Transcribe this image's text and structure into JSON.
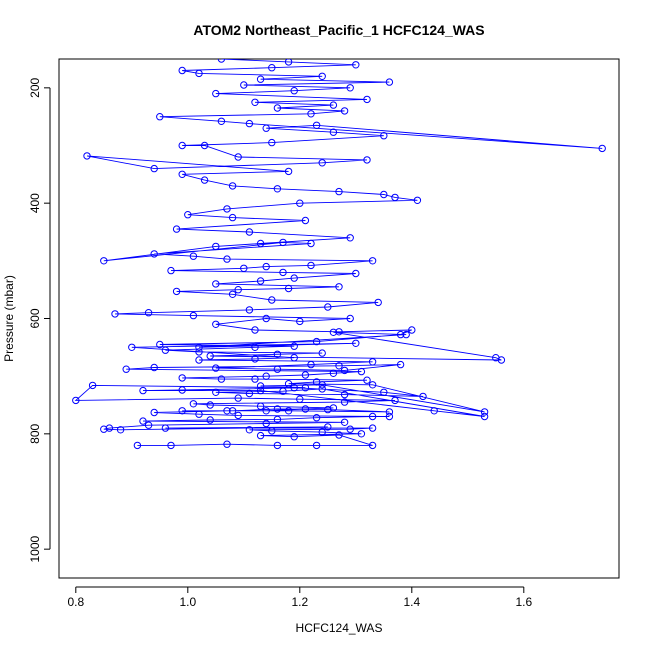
{
  "chart_data": {
    "type": "line",
    "title": "ATOM2 Northeast_Pacific_1 HCFC124_WAS",
    "xlabel": "HCFC124_WAS",
    "ylabel": "Pressure (mbar)",
    "xlim": [
      0.77,
      1.77
    ],
    "ylim": [
      1050,
      150
    ],
    "y_reversed": true,
    "x_ticks": [
      0.8,
      1.0,
      1.2,
      1.4,
      1.6
    ],
    "x_tick_labels": [
      "0.8",
      "1.0",
      "1.2",
      "1.4",
      "1.6"
    ],
    "y_ticks": [
      200,
      400,
      600,
      800,
      1000
    ],
    "y_tick_labels": [
      "200",
      "400",
      "600",
      "800",
      "1000"
    ],
    "color": "#0000ff",
    "marker": "open-circle",
    "grid": false,
    "legend": "none",
    "series": [
      {
        "x": [
          0.91,
          0.97,
          1.07,
          1.16,
          1.23,
          1.33,
          1.27,
          1.19,
          1.13,
          1.31,
          1.24,
          1.15,
          1.11,
          1.29,
          1.33,
          0.96,
          1.25,
          0.88,
          0.85,
          0.86,
          0.93,
          1.14,
          1.28,
          0.92,
          1.04,
          1.16,
          1.23,
          1.33,
          1.36,
          1.09,
          1.02,
          0.94,
          1.07,
          1.18,
          1.36,
          1.25,
          1.16,
          1.08,
          0.99,
          1.14,
          1.21,
          1.26,
          1.13,
          1.04,
          1.01,
          1.28,
          1.37,
          1.2,
          1.09,
          0.8,
          0.83,
          1.19,
          1.35,
          1.42,
          1.28,
          1.11,
          1.05,
          1.17,
          1.24,
          1.53,
          1.44,
          1.13,
          0.92,
          0.99,
          1.21,
          1.13,
          1.24,
          1.53,
          1.33,
          1.18,
          1.23,
          1.32,
          1.12,
          1.06,
          0.99,
          1.14,
          1.21,
          1.26,
          1.31,
          0.89,
          0.94,
          1.27,
          1.38,
          1.28,
          1.16,
          1.05,
          1.22,
          1.33,
          1.02,
          1.12,
          1.19,
          0.9,
          1.3,
          1.02,
          1.39,
          1.26,
          1.55,
          1.56,
          1.04,
          1.16,
          1.24,
          1.02,
          0.96,
          1.12,
          1.19,
          0.95,
          1.23,
          1.38,
          1.4,
          1.27,
          1.12,
          1.05,
          1.14,
          1.2,
          1.29,
          1.01,
          0.87,
          0.93,
          1.11,
          1.25,
          1.34,
          1.15,
          1.08,
          0.98,
          1.09,
          1.18,
          1.27,
          1.05,
          1.13,
          1.19,
          1.3,
          1.17,
          0.97,
          1.1,
          1.14,
          1.22,
          1.33,
          1.07,
          1.01,
          0.94,
          1.22,
          1.17,
          0.85,
          1.05,
          1.13,
          1.29,
          1.11,
          0.98,
          1.21,
          1.08,
          1.0,
          1.07,
          1.2,
          1.41,
          1.37,
          1.35,
          1.27,
          1.16,
          1.08,
          1.03,
          0.99,
          1.18,
          0.82,
          0.94,
          1.24,
          1.32,
          1.09,
          1.03,
          0.99,
          1.15,
          1.35,
          1.26,
          1.14,
          1.23,
          1.74,
          1.11,
          1.06,
          0.95,
          1.22,
          1.28,
          1.16,
          1.26,
          1.12,
          1.32,
          1.05,
          1.19,
          1.29,
          1.1,
          1.36,
          1.13,
          1.24,
          1.02,
          0.99,
          1.15,
          1.3,
          1.18,
          1.06
        ],
        "y": [
          820,
          820,
          818,
          820,
          820,
          820,
          802,
          805,
          803,
          800,
          797,
          795,
          793,
          792,
          790,
          790,
          788,
          793,
          792,
          790,
          785,
          782,
          780,
          778,
          776,
          775,
          772,
          770,
          770,
          768,
          766,
          763,
          760,
          760,
          762,
          758,
          757,
          760,
          760,
          760,
          757,
          755,
          752,
          750,
          748,
          745,
          742,
          740,
          738,
          742,
          716,
          720,
          728,
          735,
          732,
          730,
          728,
          726,
          722,
          770,
          760,
          725,
          725,
          724,
          720,
          717,
          715,
          762,
          715,
          713,
          710,
          707,
          705,
          705,
          703,
          700,
          698,
          695,
          692,
          688,
          685,
          682,
          680,
          690,
          688,
          686,
          680,
          675,
          672,
          670,
          668,
          650,
          643,
          650,
          628,
          624,
          668,
          672,
          665,
          662,
          660,
          658,
          655,
          650,
          648,
          645,
          640,
          628,
          620,
          623,
          620,
          610,
          600,
          605,
          600,
          595,
          592,
          590,
          585,
          580,
          572,
          568,
          558,
          553,
          550,
          548,
          545,
          540,
          535,
          530,
          522,
          520,
          517,
          513,
          510,
          508,
          500,
          497,
          492,
          488,
          470,
          468,
          500,
          475,
          470,
          460,
          450,
          445,
          430,
          425,
          420,
          410,
          400,
          395,
          390,
          385,
          380,
          375,
          370,
          360,
          350,
          345,
          318,
          340,
          330,
          325,
          320,
          300,
          300,
          295,
          283,
          277,
          270,
          265,
          305,
          262,
          258,
          250,
          245,
          240,
          235,
          230,
          225,
          220,
          210,
          205,
          200,
          195,
          190,
          185,
          180,
          175,
          170,
          165,
          160,
          155,
          150
        ]
      }
    ]
  }
}
